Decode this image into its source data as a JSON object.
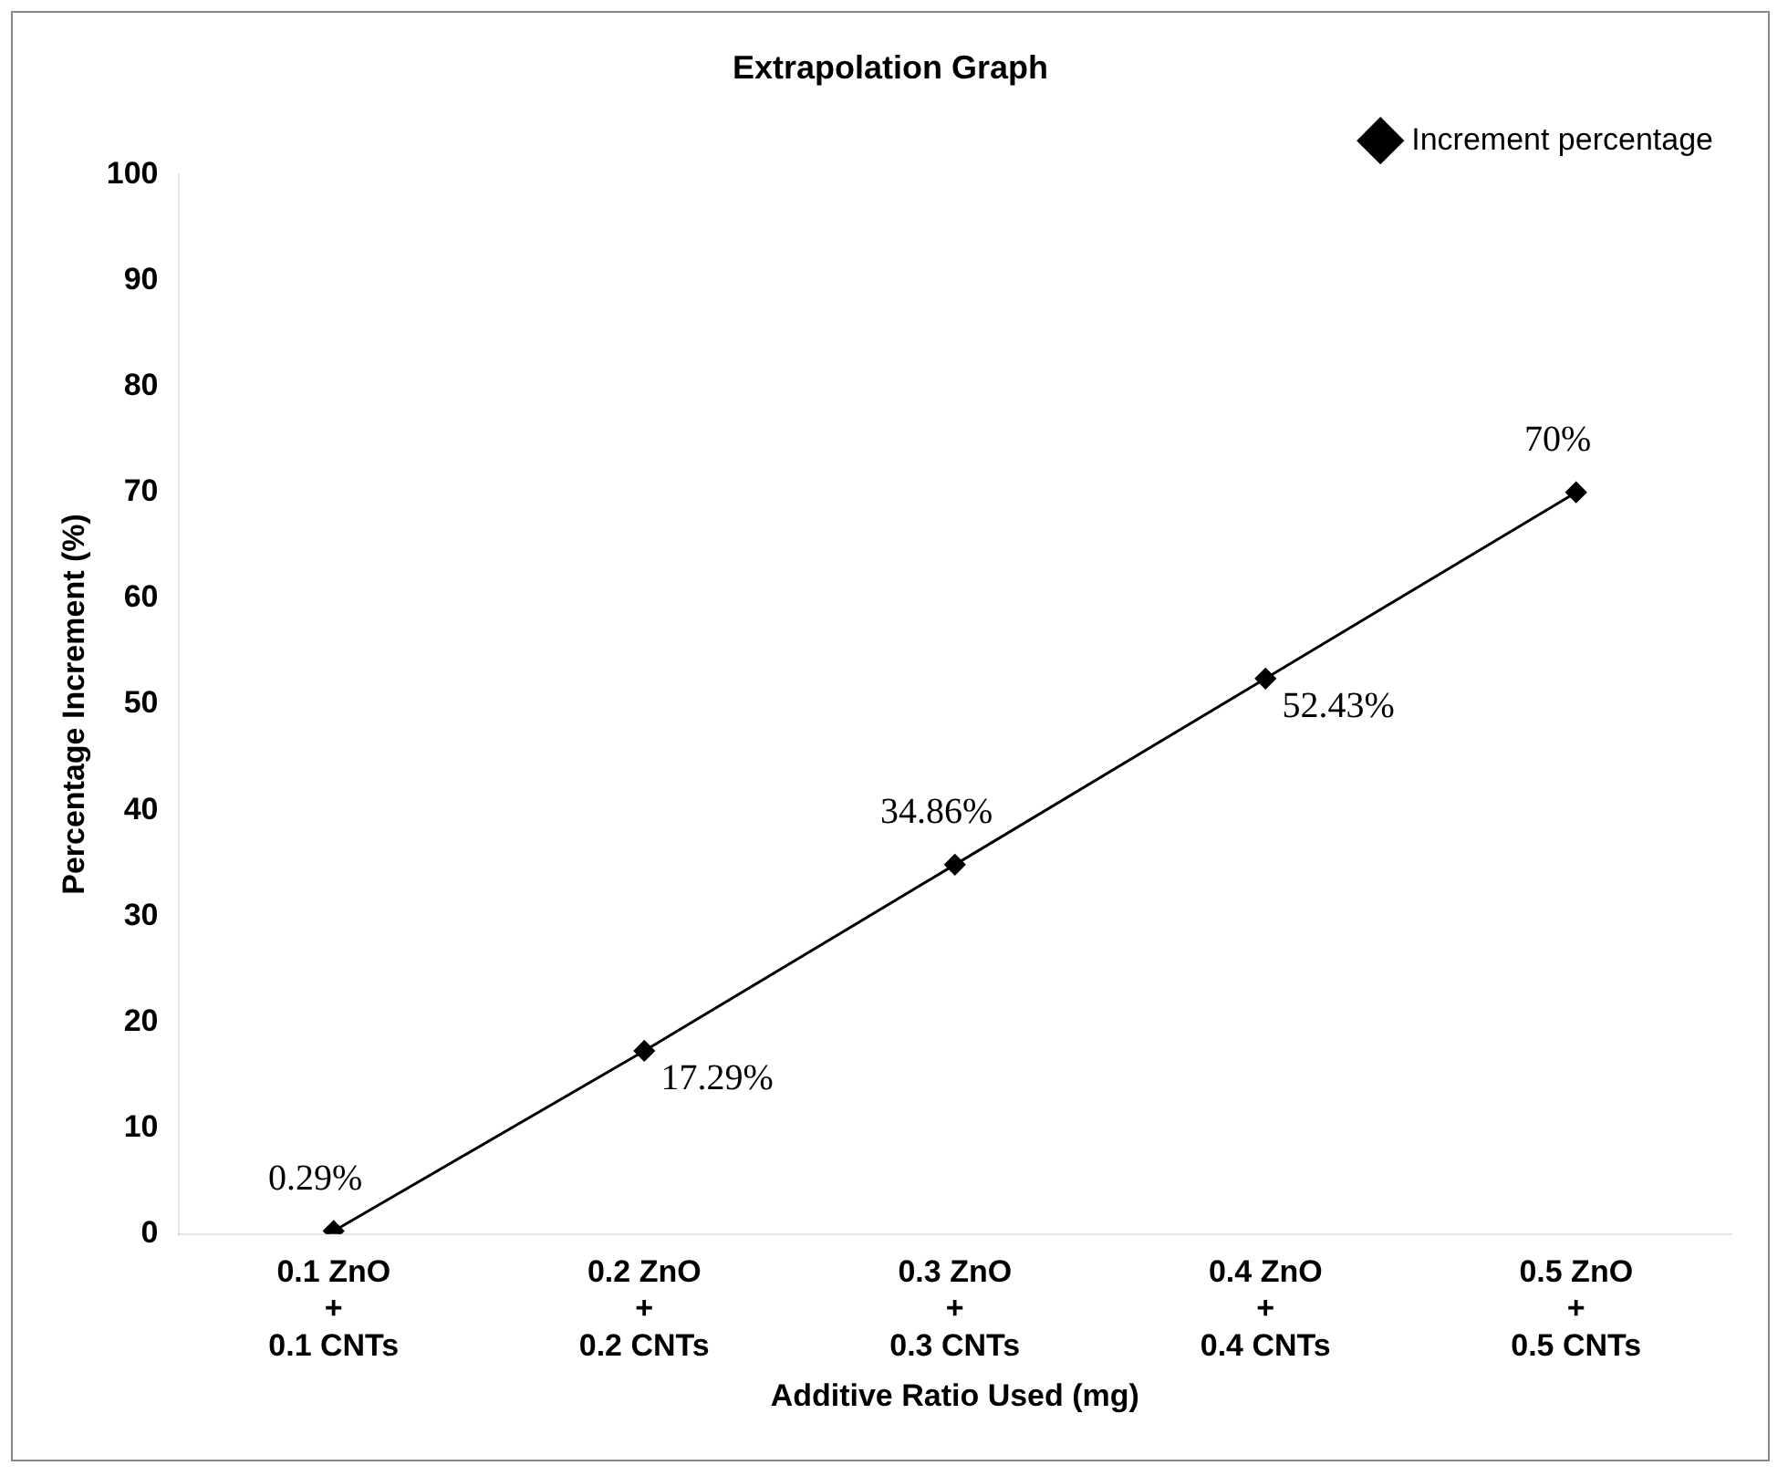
{
  "chart_data": {
    "type": "line",
    "title": "Extrapolation Graph",
    "xlabel": "Additive Ratio Used (mg)",
    "ylabel": "Percentage Increment (%)",
    "categories": [
      "0.1 ZnO\n+\n0.1 CNTs",
      "0.2 ZnO\n+\n0.2 CNTs",
      "0.3 ZnO\n+\n0.3 CNTs",
      "0.4 ZnO\n+\n0.4 CNTs",
      "0.5 ZnO\n+\n0.5 CNTs"
    ],
    "series": [
      {
        "name": "Increment percentage",
        "color": "#000000",
        "values": [
          0.29,
          17.29,
          34.86,
          52.43,
          70
        ],
        "value_labels": [
          "0.29%",
          "17.29%",
          "34.86%",
          "52.43%",
          "70%"
        ]
      }
    ],
    "ylim": [
      0,
      100
    ],
    "yticks": [
      0,
      10,
      20,
      30,
      40,
      50,
      60,
      70,
      80,
      90,
      100
    ],
    "grid": false,
    "legend": "top right",
    "marker": "diamond",
    "line_style": "solid"
  }
}
